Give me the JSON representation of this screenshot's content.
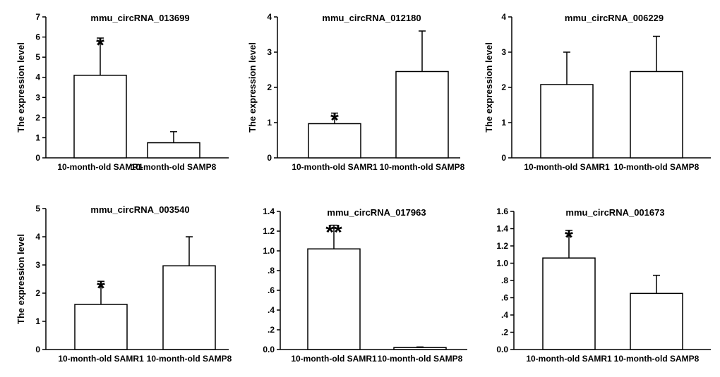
{
  "chart_data": [
    {
      "type": "bar",
      "title": "mmu_circRNA_013699",
      "ylabel": "The expression level",
      "categories": [
        "10-month-old SAMR1",
        "10-month-old SAMP8"
      ],
      "values": [
        4.1,
        0.75
      ],
      "error": [
        1.85,
        0.55
      ],
      "ylim": [
        0,
        7
      ],
      "yticks": [
        "0",
        "1",
        "2",
        "3",
        "4",
        "5",
        "6",
        "7"
      ],
      "significance": [
        "*",
        ""
      ]
    },
    {
      "type": "bar",
      "title": "mmu_circRNA_012180",
      "ylabel": "The expression level",
      "categories": [
        "10-month-old SAMR1",
        "10-month-old SAMP8"
      ],
      "values": [
        0.97,
        2.45
      ],
      "error": [
        0.3,
        1.15
      ],
      "ylim": [
        0,
        4
      ],
      "yticks": [
        "0",
        "1",
        "2",
        "3",
        "4"
      ],
      "significance": [
        "*",
        ""
      ]
    },
    {
      "type": "bar",
      "title": "mmu_circRNA_006229",
      "ylabel": "The expression level",
      "categories": [
        "10-month-old SAMR1",
        "10-month-old SAMP8"
      ],
      "values": [
        2.08,
        2.45
      ],
      "error": [
        0.92,
        1.0
      ],
      "ylim": [
        0,
        4
      ],
      "yticks": [
        "0",
        "1",
        "2",
        "3",
        "4"
      ],
      "significance": [
        "",
        ""
      ]
    },
    {
      "type": "bar",
      "title": "mmu_circRNA_003540",
      "ylabel": "The expression level",
      "categories": [
        "10-month-old SAMR1",
        "10-month-old SAMP8"
      ],
      "values": [
        1.6,
        2.97
      ],
      "error": [
        0.82,
        1.03
      ],
      "ylim": [
        0,
        5
      ],
      "yticks": [
        "0",
        "1",
        "2",
        "3",
        "4",
        "5"
      ],
      "significance": [
        "*",
        ""
      ]
    },
    {
      "type": "bar",
      "title": "mmu_circRNA_017963",
      "ylabel": "",
      "categories": [
        "10-month-old SAMR1",
        "10-month-old SAMP8"
      ],
      "values": [
        1.02,
        0.02
      ],
      "error": [
        0.24,
        0.006
      ],
      "ylim": [
        0,
        1.4
      ],
      "yticks": [
        "0.0",
        ".2",
        ".4",
        ".6",
        ".8",
        "1.0",
        "1.2",
        "1.4"
      ],
      "significance": [
        "**",
        ""
      ]
    },
    {
      "type": "bar",
      "title": "mmu_circRNA_001673",
      "ylabel": "",
      "categories": [
        "10-month-old SAMR1",
        "10-month-old SAMP8"
      ],
      "values": [
        1.06,
        0.65
      ],
      "error": [
        0.32,
        0.21
      ],
      "ylim": [
        0,
        1.6
      ],
      "yticks": [
        "0.0",
        ".2",
        ".4",
        ".6",
        ".8",
        "1.0",
        "1.2",
        "1.4",
        "1.6"
      ],
      "significance": [
        "*",
        ""
      ]
    }
  ]
}
